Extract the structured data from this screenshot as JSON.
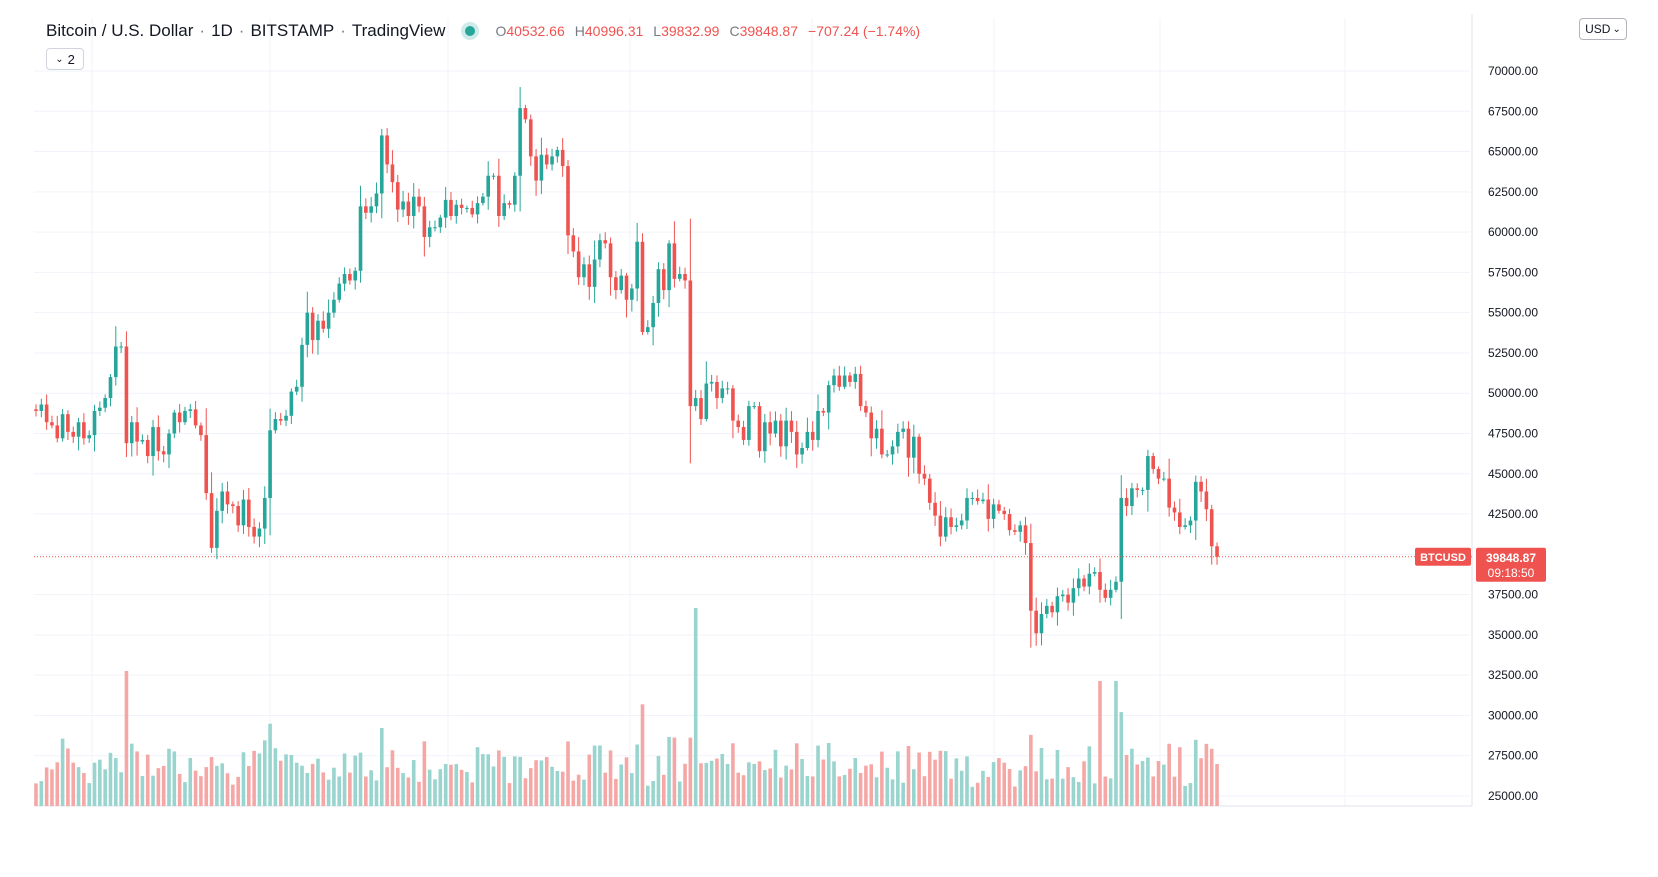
{
  "header": {
    "symbol": "Bitcoin / U.S. Dollar",
    "interval": "1D",
    "exchange": "BITSTAMP",
    "source": "TradingView",
    "separator": "·"
  },
  "ohlc": {
    "o_key": "O",
    "o_val": "40532.66",
    "h_key": "H",
    "h_val": "40996.31",
    "l_key": "L",
    "l_val": "39832.99",
    "c_key": "C",
    "c_val": "39848.87",
    "change": "−707.24 (−1.74%)"
  },
  "indicators_toggle": {
    "label": "2"
  },
  "currency": {
    "label": "USD"
  },
  "price_tag": {
    "symbol": "BTCUSD",
    "price": "39848.87",
    "countdown": "09:18:50"
  },
  "colors": {
    "up": "#26a69a",
    "down": "#ef5350",
    "up_volume": "#99d4ce",
    "down_volume": "#f5a7a6",
    "grid": "#f0f3fa",
    "axis_text": "#131722"
  },
  "chart_data": {
    "type": "candlestick",
    "interval": "1D",
    "series_name": "BTCUSD",
    "ylim": [
      25000,
      72500
    ],
    "y_ticks": [
      "25000.00",
      "27500.00",
      "30000.00",
      "32500.00",
      "35000.00",
      "37500.00",
      "40000.00",
      "42500.00",
      "45000.00",
      "47500.00",
      "50000.00",
      "52500.00",
      "55000.00",
      "57500.00",
      "60000.00",
      "62500.00",
      "65000.00",
      "67500.00",
      "70000.00"
    ],
    "last_price": 39848.87,
    "close": [
      48900,
      49300,
      48200,
      48000,
      47200,
      48700,
      47600,
      47300,
      48200,
      47200,
      47400,
      48900,
      49100,
      49700,
      51000,
      52900,
      52900,
      46900,
      48200,
      47000,
      47100,
      46100,
      47900,
      46400,
      46200,
      47500,
      48800,
      48200,
      48900,
      49000,
      48000,
      47400,
      43800,
      40400,
      42700,
      43900,
      43100,
      43000,
      41800,
      43400,
      41700,
      41100,
      41600,
      43500,
      47700,
      48400,
      48300,
      48600,
      50100,
      50400,
      53000,
      55000,
      53300,
      54500,
      54000,
      55000,
      55800,
      56800,
      57400,
      57000,
      57600,
      61600,
      61200,
      61600,
      62400,
      66000,
      64200,
      63100,
      61400,
      61900,
      61000,
      62200,
      61600,
      59700,
      60300,
      60300,
      60900,
      62000,
      61000,
      61700,
      61500,
      61500,
      61100,
      61800,
      62200,
      63500,
      63500,
      61000,
      61800,
      61700,
      63500,
      67700,
      67000,
      64700,
      63200,
      64800,
      64200,
      64700,
      65100,
      64100,
      59800,
      58800,
      57200,
      58000,
      56600,
      58300,
      59500,
      59300,
      57200,
      56400,
      57300,
      55800,
      56500,
      59400,
      53800,
      54100,
      55600,
      57700,
      56400,
      59300,
      57100,
      57400,
      57000,
      49200,
      49700,
      48400,
      50600,
      50700,
      49700,
      50300,
      50300,
      48300,
      47900,
      47100,
      49200,
      49200,
      46400,
      48200,
      47500,
      48300,
      46700,
      48300,
      47600,
      46200,
      46600,
      47600,
      47100,
      48900,
      48800,
      50500,
      51100,
      50400,
      51100,
      50700,
      51200,
      49200,
      48800,
      47200,
      47800,
      46200,
      46200,
      46700,
      47600,
      47800,
      46000,
      47300,
      45000,
      44700,
      43200,
      42400,
      41100,
      42300,
      41700,
      41800,
      42100,
      43500,
      43500,
      43300,
      43400,
      42200,
      43100,
      42700,
      42500,
      41500,
      41400,
      41800,
      40700,
      36500,
      35100,
      36300,
      36800,
      36400,
      37400,
      37500,
      37000,
      37900,
      38500,
      38000,
      38800,
      38900,
      37800,
      37300,
      37800,
      38300,
      43500,
      43000,
      44100,
      44000,
      44000,
      46100,
      45300,
      44700,
      44700,
      42900,
      42600,
      41700,
      41800,
      42100,
      44500,
      43900,
      42800,
      40500,
      39848
    ]
  }
}
